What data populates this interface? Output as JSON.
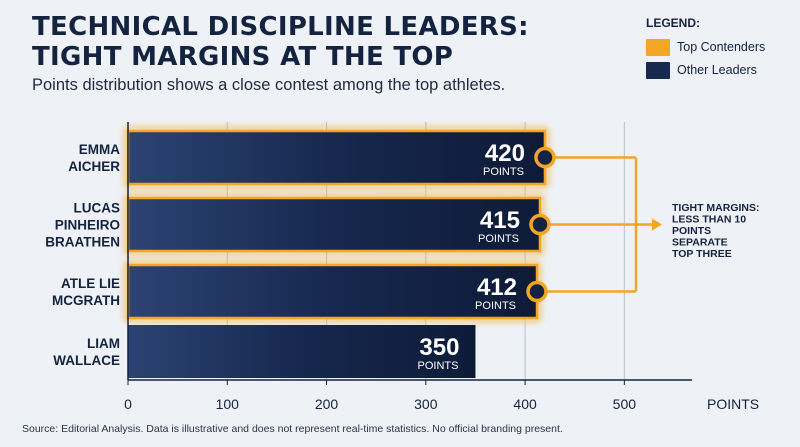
{
  "title_lines": [
    "TECHNICAL DISCIPLINE LEADERS:",
    "TIGHT MARGINS AT THE TOP"
  ],
  "subtitle": "Points distribution shows a close contest among the top athletes.",
  "legend": {
    "title": "LEGEND:",
    "items": [
      {
        "label": "Top Contenders",
        "color": "#f3a623"
      },
      {
        "label": "Other Leaders",
        "color": "#17294f"
      }
    ]
  },
  "annotation_lines": [
    "TIGHT MARGINS:",
    "LESS THAN 10",
    "POINTS",
    "SEPARATE",
    "TOP THREE"
  ],
  "source": "Source: Editorial Analysis. Data is illustrative and does not represent real-time statistics. No official branding present.",
  "chart_data": {
    "type": "bar",
    "orientation": "horizontal",
    "categories": [
      [
        "EMMA",
        "AICHER"
      ],
      [
        "LUCAS",
        "PINHEIRO",
        "BRAATHEN"
      ],
      [
        "ATLE LIE",
        "MCGRATH"
      ],
      [
        "LIAM",
        "WALLACE"
      ]
    ],
    "values": [
      420,
      415,
      412,
      350
    ],
    "groups": [
      "Top Contenders",
      "Top Contenders",
      "Top Contenders",
      "Other Leaders"
    ],
    "value_unit_label": "POINTS",
    "xlabel": "POINTS",
    "xlim": [
      0,
      550
    ],
    "xticks": [
      0,
      100,
      200,
      300,
      400,
      500
    ],
    "grid": true,
    "colors": {
      "top": "#f3a623",
      "other": "#17294f",
      "grid": "#b9c1cd"
    }
  }
}
